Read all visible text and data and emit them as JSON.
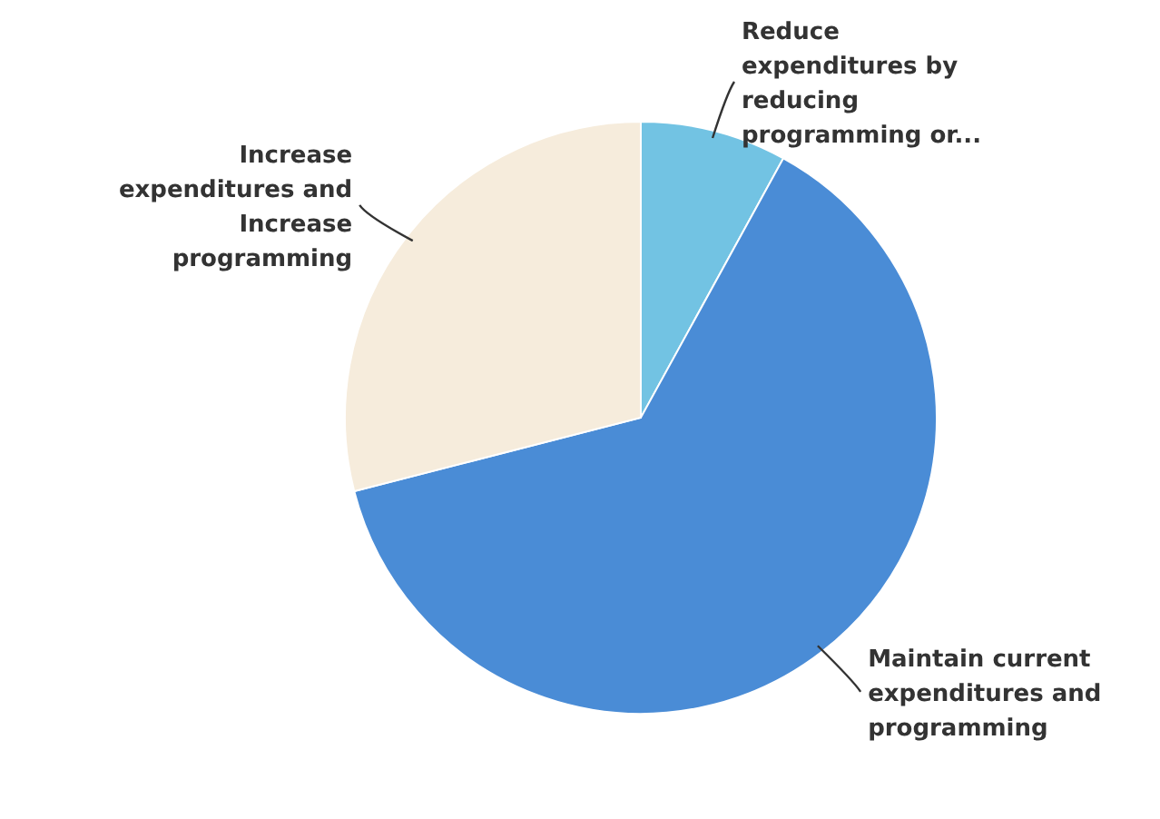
{
  "chart_data": {
    "type": "pie",
    "categories": [
      "Reduce expenditures by reducing programming or...",
      "Maintain current expenditures and programming",
      "Increase expenditures and Increase programming"
    ],
    "values": [
      8,
      63,
      29
    ],
    "colors": [
      "#72c3e3",
      "#4a8cd6",
      "#f6ecdc"
    ]
  }
}
